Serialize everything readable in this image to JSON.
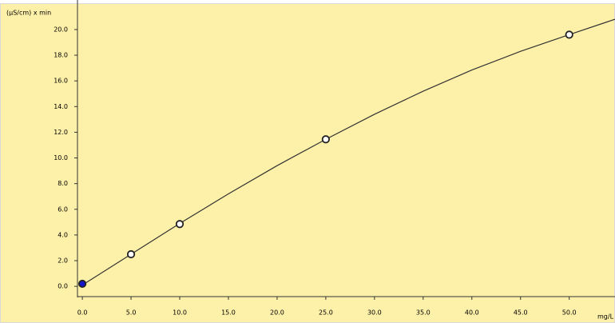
{
  "chart_data": {
    "type": "scatter",
    "y_label": "(µS/cm) x min",
    "x_label": "mg/L",
    "xlim": [
      -0.5,
      54.7
    ],
    "ylim": [
      -0.8,
      22.3
    ],
    "xticks": [
      {
        "value": 0,
        "label": "0.0"
      },
      {
        "value": 5,
        "label": "5.0"
      },
      {
        "value": 10,
        "label": "10.0"
      },
      {
        "value": 15,
        "label": "15.0"
      },
      {
        "value": 20,
        "label": "20.0"
      },
      {
        "value": 25,
        "label": "25.0"
      },
      {
        "value": 30,
        "label": "30.0"
      },
      {
        "value": 35,
        "label": "35.0"
      },
      {
        "value": 40,
        "label": "40.0"
      },
      {
        "value": 45,
        "label": "45.0"
      },
      {
        "value": 50,
        "label": "50.0"
      }
    ],
    "yticks": [
      {
        "value": 0,
        "label": "0.0"
      },
      {
        "value": 2,
        "label": "2.0"
      },
      {
        "value": 4,
        "label": "4.0"
      },
      {
        "value": 6,
        "label": "6.0"
      },
      {
        "value": 8,
        "label": "8.0"
      },
      {
        "value": 10,
        "label": "10.0"
      },
      {
        "value": 12,
        "label": "12.0"
      },
      {
        "value": 14,
        "label": "14.0"
      },
      {
        "value": 16,
        "label": "16.0"
      },
      {
        "value": 18,
        "label": "18.0"
      },
      {
        "value": 20,
        "label": "20.0"
      }
    ],
    "series": [
      {
        "type": "line",
        "color": "#333333",
        "x": [
          0,
          5,
          10,
          15,
          20,
          25,
          30,
          35,
          40,
          45,
          50,
          54.7
        ],
        "values": [
          0.1,
          2.5,
          4.9,
          7.2,
          9.4,
          11.45,
          13.4,
          15.2,
          16.85,
          18.3,
          19.6,
          20.8
        ]
      },
      {
        "type": "scatter",
        "color": "#1414c8",
        "x": [
          0
        ],
        "values": [
          0.2
        ]
      },
      {
        "type": "scatter",
        "color": "#ffffff",
        "x": [
          5,
          10,
          25,
          50
        ],
        "values": [
          2.5,
          4.85,
          11.45,
          19.6
        ]
      }
    ]
  }
}
